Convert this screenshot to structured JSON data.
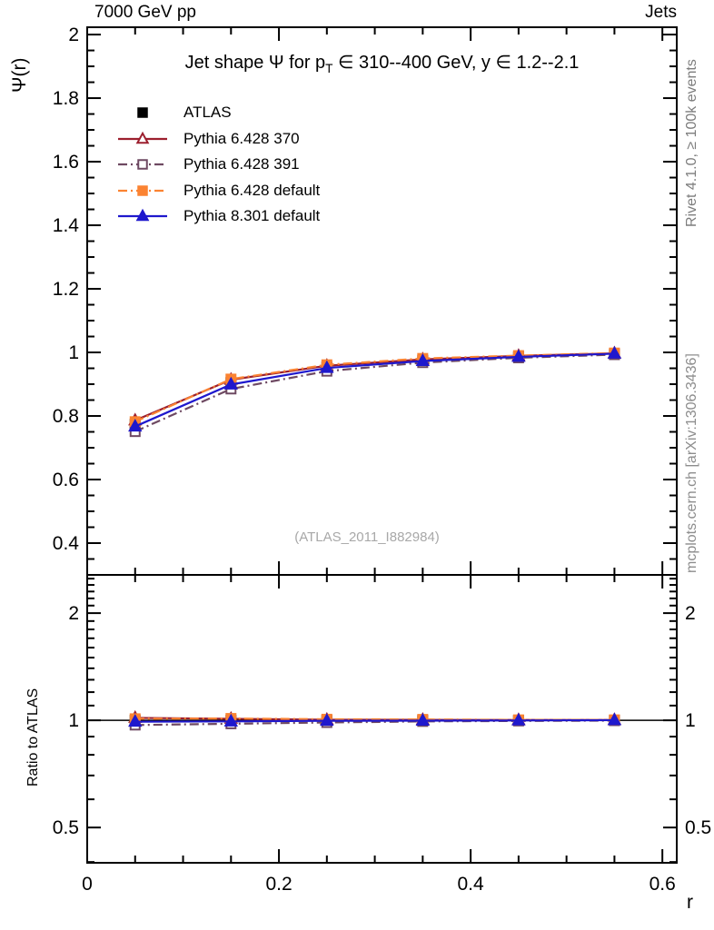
{
  "header": {
    "left": "7000 GeV pp",
    "right": "Jets"
  },
  "title": {
    "pre": "Jet shape Ψ for p",
    "sub": "T",
    "post": " ∈ 310--400 GeV, y ∈ 1.2--2.1"
  },
  "watermark": "(ATLAS_2011_I882984)",
  "side_text_top": "Rivet 4.1.0, ≥ 100k events",
  "side_text_bottom": "mcplots.cern.ch [arXiv:1306.3436]",
  "axes": {
    "main_ylabel": "Ψ(r)",
    "ratio_ylabel": "Ratio to ATLAS",
    "xlabel": "r"
  },
  "chart_data": {
    "type": "line",
    "title": "Jet shape Ψ for pT ∈ 310--400 GeV, y ∈ 1.2--2.1",
    "x": [
      0.05,
      0.15,
      0.25,
      0.35,
      0.45,
      0.55
    ],
    "xlabel": "r",
    "ylabel_main": "Ψ(r)",
    "ylabel_ratio": "Ratio to ATLAS",
    "xlim": [
      0,
      0.615
    ],
    "main_ylim": [
      0.3,
      2.023
    ],
    "ratio_ylim": [
      0.398,
      2.561
    ],
    "ratio_yscale": "log",
    "grid": false,
    "legend_position": "upper-left",
    "x_major_ticks": [
      0,
      0.2,
      0.4,
      0.6
    ],
    "x_minor_step": 0.05,
    "main_y_major_ticks": [
      0.4,
      0.6,
      0.8,
      1,
      1.2,
      1.4,
      1.6,
      1.8,
      2
    ],
    "main_y_minor_step": 0.05,
    "ratio_y_major_ticks": [
      0.5,
      1,
      2
    ],
    "ratio_y_minor_ticks": [
      0.4,
      0.6,
      0.7,
      0.8,
      0.9,
      1.1,
      1.2,
      1.3,
      1.4,
      1.5,
      1.6,
      1.7,
      1.8,
      1.9,
      2.1,
      2.2,
      2.3,
      2.4,
      2.5
    ],
    "reference_line": 1,
    "series": [
      {
        "name": "ATLAS",
        "color": "#000000",
        "marker": "square",
        "filled": true,
        "line": "none",
        "values": [
          0.774,
          0.905,
          0.954,
          0.975,
          0.987,
          0.995
        ],
        "errors": [
          0.012,
          0.008,
          0.006,
          0.005,
          0.004,
          0.004
        ],
        "ratio": [
          1,
          1,
          1,
          1,
          1,
          1
        ],
        "ratio_errors": [
          0.016,
          0.009,
          0.006,
          0.005,
          0.004,
          0.004
        ]
      },
      {
        "name": "Pythia 6.428 370",
        "color": "#9c1f2e",
        "marker": "triangle",
        "filled": false,
        "line": "solid",
        "values": [
          0.786,
          0.914,
          0.958,
          0.978,
          0.989,
          0.997
        ],
        "ratio": [
          1.016,
          1.01,
          1.004,
          1.003,
          1.002,
          1.002
        ]
      },
      {
        "name": "Pythia 6.428 391",
        "color": "#6e4962",
        "marker": "square",
        "filled": false,
        "line": "dashdot",
        "values": [
          0.751,
          0.885,
          0.941,
          0.968,
          0.983,
          0.993
        ],
        "ratio": [
          0.97,
          0.978,
          0.986,
          0.993,
          0.996,
          0.998
        ]
      },
      {
        "name": "Pythia 6.428 default",
        "color": "#fb8332",
        "marker": "square",
        "filled": true,
        "line": "dashdot",
        "values": [
          0.782,
          0.916,
          0.961,
          0.981,
          0.99,
          0.998
        ],
        "ratio": [
          1.01,
          1.012,
          1.007,
          1.006,
          1.003,
          1.003
        ]
      },
      {
        "name": "Pythia 8.301 default",
        "color": "#1f18cd",
        "marker": "triangle",
        "filled": true,
        "line": "solid",
        "values": [
          0.767,
          0.899,
          0.951,
          0.973,
          0.986,
          0.996
        ],
        "ratio": [
          0.991,
          0.993,
          0.997,
          0.998,
          0.999,
          1.001
        ]
      }
    ]
  }
}
